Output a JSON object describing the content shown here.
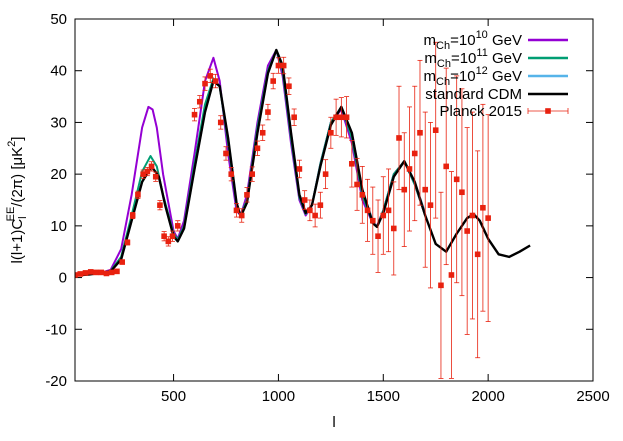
{
  "chart_data": {
    "type": "line",
    "title": "",
    "xlabel": "l",
    "ylabel": "l(l+1)C_l^{EE}/(2π) [μK^2]",
    "ylabel_parts": {
      "main1": "l(l+1)C",
      "sub": "l",
      "sup": "EE",
      "main2": "/(2π) [μK",
      "sup2": "2",
      "main3": "]"
    },
    "xlim": [
      30,
      2500
    ],
    "ylim": [
      -20,
      50
    ],
    "xticks": [
      500,
      1000,
      1500,
      2000,
      2500
    ],
    "yticks": [
      -20,
      -10,
      0,
      10,
      20,
      30,
      40,
      50
    ],
    "grid": false,
    "legend_position": "top-right",
    "series": [
      {
        "name": "m_Ch=10^10 GeV",
        "label_parts": {
          "pre": "m",
          "sub": "Ch",
          "mid": "=10",
          "sup": "10",
          "post": " GeV"
        },
        "color": "#9400d3",
        "style": "line",
        "x": [
          30,
          150,
          200,
          250,
          300,
          350,
          380,
          400,
          420,
          450,
          500,
          520,
          550,
          600,
          650,
          690,
          720,
          760,
          800,
          820,
          850,
          900,
          950,
          990,
          1020,
          1060,
          1100,
          1130,
          1160,
          1200,
          1250,
          1300,
          1350,
          1400,
          1450,
          1470,
          1500,
          1550,
          1600,
          1650,
          1700
        ],
        "y": [
          0.5,
          0.9,
          1.5,
          5.5,
          16,
          29,
          33,
          32.5,
          29,
          20,
          9,
          7.5,
          11,
          24,
          38,
          42.5,
          38,
          24,
          13,
          12,
          16,
          30,
          41,
          44,
          39,
          26,
          15,
          12,
          14,
          22,
          30,
          32.5,
          26,
          15,
          10.5,
          10,
          13,
          20,
          22.5,
          18,
          12
        ]
      },
      {
        "name": "m_Ch=10^11 GeV",
        "label_parts": {
          "pre": "m",
          "sub": "Ch",
          "mid": "=10",
          "sup": "11",
          "post": " GeV"
        },
        "color": "#009e73",
        "style": "line",
        "x": [
          30,
          150,
          200,
          250,
          300,
          350,
          390,
          420,
          450,
          500,
          520,
          550,
          600,
          650,
          690,
          720,
          760,
          800,
          820,
          850,
          900,
          950,
          990,
          1020,
          1060,
          1100,
          1130,
          1160,
          1200,
          1250,
          1300,
          1350,
          1400,
          1450,
          1470,
          1500,
          1550,
          1600,
          1650,
          1700
        ],
        "y": [
          0.5,
          0.9,
          1.3,
          4,
          12,
          20.5,
          23.5,
          21.5,
          16,
          8.5,
          7.3,
          10,
          22,
          33.5,
          38.5,
          37,
          26,
          14,
          12,
          15,
          29,
          40,
          44,
          40,
          27,
          15.5,
          12.3,
          14,
          22,
          30,
          33,
          27,
          16,
          10.5,
          9.8,
          13,
          20,
          22.5,
          18,
          12
        ]
      },
      {
        "name": "m_Ch=10^12 GeV",
        "label_parts": {
          "pre": "m",
          "sub": "Ch",
          "mid": "=10",
          "sup": "12",
          "post": " GeV"
        },
        "color": "#56b4e9",
        "style": "line",
        "x": [
          30,
          150,
          200,
          250,
          300,
          350,
          395,
          430,
          460,
          500,
          520,
          550,
          600,
          650,
          690,
          720,
          760,
          800,
          820,
          850,
          900,
          950,
          990,
          1020,
          1060,
          1100,
          1130,
          1160,
          1200,
          1250,
          1300,
          1350,
          1400,
          1450,
          1470,
          1500,
          1550,
          1600,
          1650,
          1700
        ],
        "y": [
          0.5,
          0.9,
          1.2,
          3.5,
          11,
          18.5,
          21.5,
          19.5,
          14,
          8,
          7.1,
          9.5,
          21,
          32,
          38,
          37,
          27,
          14.5,
          12,
          14.5,
          28,
          39.5,
          44,
          41,
          28,
          16,
          12.5,
          14,
          21.5,
          29.5,
          33,
          28,
          17,
          11,
          9.8,
          12.5,
          19.5,
          22.5,
          18.5,
          12.5
        ]
      },
      {
        "name": "standard CDM",
        "label_parts": {
          "pre": "standard CDM"
        },
        "color": "#000000",
        "style": "line",
        "x": [
          30,
          100,
          150,
          200,
          250,
          300,
          350,
          395,
          430,
          460,
          500,
          520,
          550,
          600,
          650,
          690,
          720,
          760,
          800,
          820,
          850,
          900,
          950,
          990,
          1020,
          1060,
          1100,
          1130,
          1160,
          1200,
          1250,
          1300,
          1350,
          1400,
          1450,
          1470,
          1500,
          1550,
          1600,
          1650,
          1700,
          1750,
          1800,
          1850,
          1900,
          1930,
          1960,
          2000,
          2050,
          2100,
          2150,
          2200
        ],
        "y": [
          0.4,
          0.6,
          0.9,
          1.2,
          3.5,
          11,
          18.5,
          21.5,
          19.5,
          14,
          8,
          7,
          9.5,
          21,
          32,
          38,
          37,
          27,
          14.5,
          11.8,
          14.5,
          28,
          39.5,
          44,
          41,
          28,
          16,
          12.5,
          14,
          21.5,
          29.5,
          33,
          28,
          17,
          10.5,
          9.8,
          12.5,
          19.5,
          22.5,
          18.5,
          12,
          6.5,
          5,
          8.5,
          11.5,
          12.3,
          11,
          7.5,
          4.5,
          4,
          5,
          6.2
        ]
      },
      {
        "name": "Planck 2015",
        "label_parts": {
          "pre": "Planck 2015"
        },
        "color": "#e8210f",
        "style": "points-errorbars",
        "x": [
          30,
          55,
          80,
          105,
          130,
          155,
          180,
          205,
          230,
          255,
          280,
          305,
          330,
          355,
          375,
          395,
          415,
          435,
          455,
          475,
          495,
          520,
          600,
          625,
          650,
          675,
          700,
          725,
          750,
          775,
          800,
          825,
          850,
          875,
          900,
          925,
          950,
          975,
          1000,
          1025,
          1050,
          1075,
          1100,
          1125,
          1150,
          1175,
          1200,
          1225,
          1250,
          1275,
          1300,
          1325,
          1350,
          1375,
          1400,
          1425,
          1450,
          1475,
          1500,
          1525,
          1550,
          1575,
          1600,
          1625,
          1650,
          1675,
          1700,
          1725,
          1750,
          1775,
          1800,
          1825,
          1850,
          1875,
          1900,
          1925,
          1950,
          1975,
          2000
        ],
        "y": [
          0.5,
          0.7,
          0.9,
          1.1,
          1.0,
          1.0,
          0.8,
          1.0,
          1.2,
          3.0,
          6.8,
          12,
          16,
          20,
          20.5,
          21.5,
          19.5,
          14,
          8,
          7,
          8,
          10,
          31.5,
          34,
          37.5,
          39,
          38,
          30,
          24,
          20,
          13,
          12,
          16,
          20,
          25,
          28,
          32,
          38,
          41,
          41,
          37,
          31,
          21,
          15,
          13,
          12,
          14,
          20,
          28,
          31,
          31,
          31,
          22,
          18,
          16,
          13,
          11,
          8,
          12,
          13,
          9.5,
          27,
          17,
          21,
          24,
          28,
          17,
          14,
          28.5,
          -1.5,
          21.5,
          0.5,
          19,
          16.5,
          9,
          12,
          4.5,
          13.5,
          11.5
        ],
        "err": [
          0.3,
          0.3,
          0.3,
          0.3,
          0.3,
          0.3,
          0.3,
          0.3,
          0.3,
          0.4,
          0.5,
          0.6,
          0.7,
          0.8,
          0.8,
          0.9,
          0.9,
          0.9,
          0.9,
          0.9,
          1.0,
          1.0,
          1.2,
          1.2,
          1.3,
          1.3,
          1.3,
          1.3,
          1.3,
          1.3,
          1.3,
          1.3,
          1.4,
          1.4,
          1.4,
          1.5,
          1.5,
          1.5,
          1.5,
          1.6,
          1.6,
          1.6,
          1.7,
          1.8,
          2.0,
          2.2,
          2.5,
          2.8,
          3.0,
          3.5,
          3.8,
          4.0,
          4.5,
          5.0,
          5.5,
          6.0,
          6.5,
          7.0,
          7.5,
          8.0,
          9.0,
          10.0,
          11.0,
          12.0,
          13.0,
          14.0,
          15.0,
          16.0,
          17.0,
          18.0,
          19.0,
          20.0,
          20.0,
          20.0,
          20.0,
          20.0,
          20.0,
          20.0,
          20.0
        ]
      }
    ]
  }
}
